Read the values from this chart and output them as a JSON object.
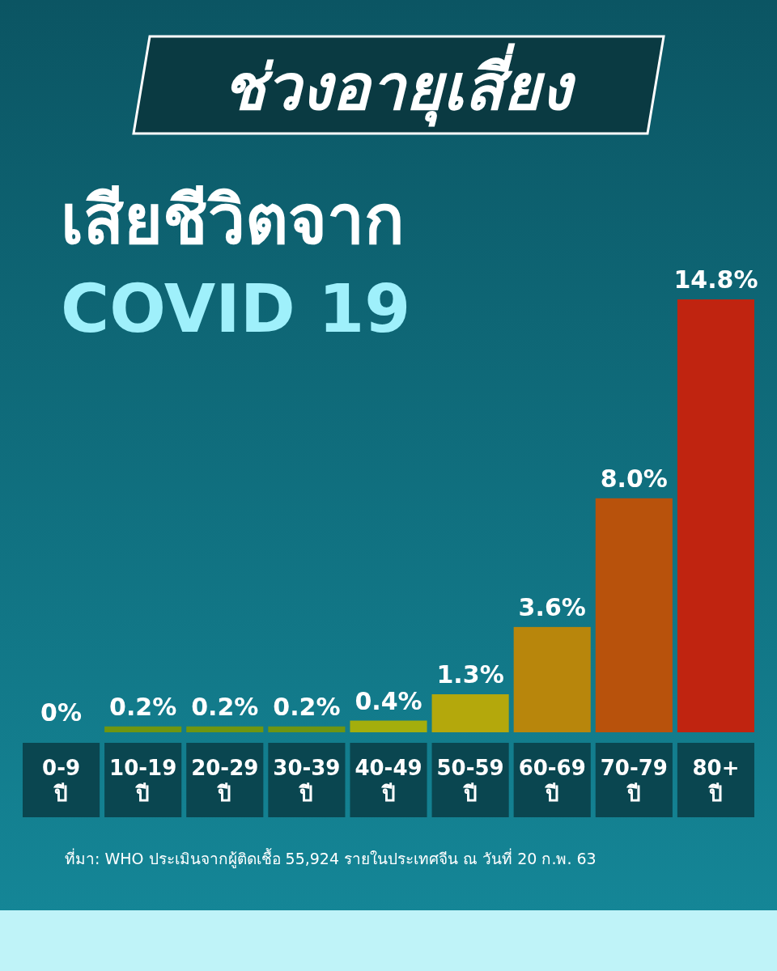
{
  "chart_data": {
    "type": "bar",
    "title": "ช่วงอายุเสี่ยง",
    "subtitle": "เสียชีวิตจาก COVID 19",
    "categories": [
      "0-9 ปี",
      "10-19 ปี",
      "20-29 ปี",
      "30-39 ปี",
      "40-49 ปี",
      "50-59 ปี",
      "60-69 ปี",
      "70-79 ปี",
      "80+ ปี"
    ],
    "values": [
      0,
      0.2,
      0.2,
      0.2,
      0.4,
      1.3,
      3.6,
      8.0,
      14.8
    ],
    "value_labels": [
      "0%",
      "0.2%",
      "0.2%",
      "0.2%",
      "0.4%",
      "1.3%",
      "3.6%",
      "8.0%",
      "14.8%"
    ],
    "colors": [
      "#3c9c14",
      "#6f9610",
      "#6f9610",
      "#6e9512",
      "#a4ae0c",
      "#b4a80c",
      "#b8860c",
      "#b8520c",
      "#c02410"
    ],
    "annotations": [
      "ที่มา: WHO ประเมินจากผู้ติดเชื้อ 55,924 รายในประเทศจีน ณ วันที่ 20 ก.พ. 63"
    ]
  }
}
